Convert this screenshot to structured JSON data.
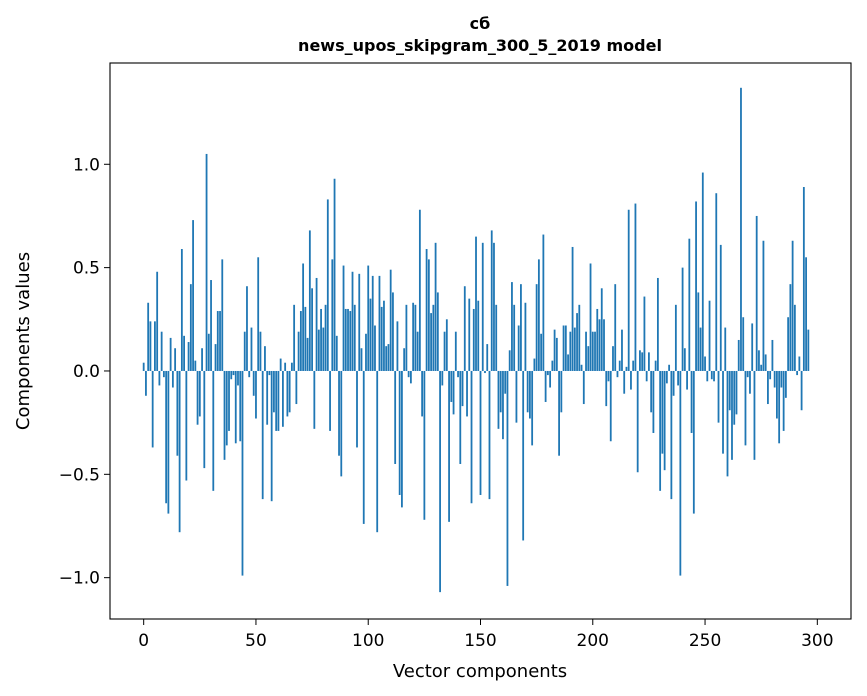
{
  "chart_data": {
    "type": "bar",
    "title": "сб",
    "subtitle": "news_upos_skipgram_300_5_2019 model",
    "xlabel": "Vector components",
    "ylabel": "Components values",
    "xlim": [
      -15,
      315
    ],
    "ylim": [
      -1.2,
      1.49
    ],
    "xticks": [
      0,
      50,
      100,
      150,
      200,
      250,
      300
    ],
    "yticks": [
      -1.0,
      -0.5,
      0.0,
      0.5,
      1.0
    ],
    "ytick_labels": [
      "−1.0",
      "−0.5",
      "0.0",
      "0.5",
      "1.0"
    ],
    "bar_color": "#1f77b4",
    "grid": false,
    "values": [
      0.04,
      -0.12,
      0.33,
      0.24,
      -0.37,
      0.24,
      0.48,
      -0.07,
      0.19,
      -0.03,
      -0.64,
      -0.69,
      0.16,
      -0.08,
      0.11,
      -0.41,
      -0.78,
      0.59,
      0.17,
      -0.53,
      0.14,
      0.42,
      0.73,
      0.05,
      -0.26,
      -0.22,
      0.11,
      -0.47,
      1.05,
      0.18,
      0.44,
      -0.58,
      0.13,
      0.29,
      0.29,
      0.54,
      -0.43,
      -0.36,
      -0.29,
      -0.04,
      -0.02,
      -0.35,
      -0.07,
      -0.34,
      -0.99,
      0.19,
      0.41,
      -0.03,
      0.21,
      -0.12,
      -0.23,
      0.55,
      0.19,
      -0.62,
      0.12,
      -0.26,
      -0.02,
      -0.63,
      -0.2,
      -0.29,
      -0.29,
      0.06,
      -0.27,
      0.04,
      -0.22,
      -0.2,
      0.04,
      0.32,
      -0.16,
      0.19,
      0.29,
      0.52,
      0.31,
      0.16,
      0.68,
      0.4,
      -0.28,
      0.45,
      0.2,
      0.3,
      0.21,
      0.32,
      0.83,
      -0.29,
      0.54,
      0.93,
      0.17,
      -0.41,
      -0.51,
      0.51,
      0.3,
      0.3,
      0.29,
      0.48,
      0.32,
      -0.37,
      0.47,
      0.11,
      -0.74,
      0.18,
      0.51,
      0.35,
      0.46,
      0.22,
      -0.78,
      0.46,
      0.31,
      0.34,
      0.12,
      0.13,
      0.49,
      0.38,
      -0.45,
      0.24,
      -0.6,
      -0.66,
      0.11,
      0.32,
      -0.03,
      -0.06,
      0.33,
      0.32,
      0.19,
      0.78,
      -0.22,
      -0.72,
      0.59,
      0.54,
      0.28,
      0.32,
      0.62,
      0.38,
      -1.07,
      -0.07,
      0.19,
      0.25,
      -0.73,
      -0.15,
      -0.21,
      0.19,
      -0.03,
      -0.45,
      -0.17,
      0.41,
      -0.22,
      0.35,
      -0.64,
      0.3,
      0.65,
      0.34,
      -0.6,
      0.62,
      -0.01,
      0.13,
      -0.62,
      0.68,
      0.62,
      0.32,
      -0.28,
      -0.2,
      -0.33,
      -0.11,
      -1.04,
      0.1,
      0.43,
      0.32,
      -0.25,
      0.22,
      0.42,
      -0.82,
      0.33,
      -0.2,
      -0.23,
      -0.36,
      0.06,
      0.42,
      0.54,
      0.18,
      0.66,
      -0.15,
      -0.02,
      -0.08,
      0.05,
      0.2,
      0.16,
      -0.41,
      -0.2,
      0.22,
      0.22,
      0.08,
      0.19,
      0.6,
      0.21,
      0.28,
      0.32,
      0.03,
      -0.16,
      0.19,
      0.12,
      0.52,
      0.19,
      0.19,
      0.3,
      0.25,
      0.4,
      0.25,
      -0.17,
      -0.05,
      -0.34,
      0.12,
      0.42,
      -0.03,
      0.05,
      0.2,
      -0.11,
      0.02,
      0.78,
      -0.09,
      0.05,
      0.81,
      -0.49,
      0.1,
      0.09,
      0.36,
      -0.05,
      0.09,
      -0.2,
      -0.3,
      0.05,
      0.45,
      -0.58,
      -0.4,
      -0.48,
      -0.06,
      0.03,
      -0.62,
      -0.12,
      0.32,
      -0.07,
      -0.99,
      0.5,
      0.11,
      -0.09,
      0.64,
      -0.3,
      -0.69,
      0.82,
      0.38,
      0.21,
      0.96,
      0.07,
      -0.05,
      0.34,
      -0.04,
      -0.05,
      0.86,
      -0.25,
      0.61,
      -0.4,
      0.21,
      -0.51,
      -0.19,
      -0.43,
      -0.26,
      -0.21,
      0.15,
      1.37,
      0.26,
      -0.36,
      -0.03,
      -0.11,
      0.23,
      -0.43,
      0.75,
      0.1,
      0.03,
      0.63,
      0.08,
      -0.16,
      -0.04,
      0.15,
      -0.08,
      -0.23,
      -0.35,
      -0.08,
      -0.29,
      -0.13,
      0.26,
      0.42,
      0.63,
      0.32,
      -0.02,
      0.07,
      -0.19,
      0.89,
      0.55,
      0.2
    ]
  }
}
